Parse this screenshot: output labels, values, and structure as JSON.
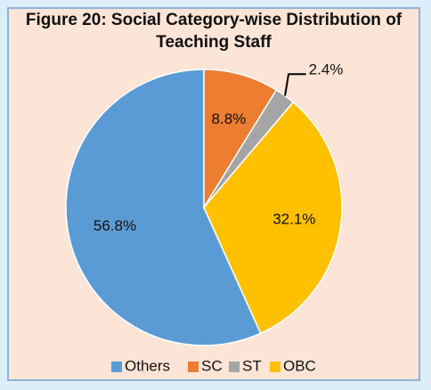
{
  "chart_data": {
    "type": "pie",
    "title": "Figure 20:  Social Category-wise Distribution of Teaching Staff",
    "categories": [
      "Others",
      "SC",
      "ST",
      "OBC"
    ],
    "values": [
      56.8,
      8.8,
      2.4,
      32.1
    ],
    "value_labels": [
      "56.8%",
      "8.8%",
      "2.4%",
      "32.1%"
    ],
    "colors": [
      "#5b9bd5",
      "#ed7d31",
      "#a5a5a5",
      "#ffc000"
    ],
    "legend": "bottom"
  }
}
